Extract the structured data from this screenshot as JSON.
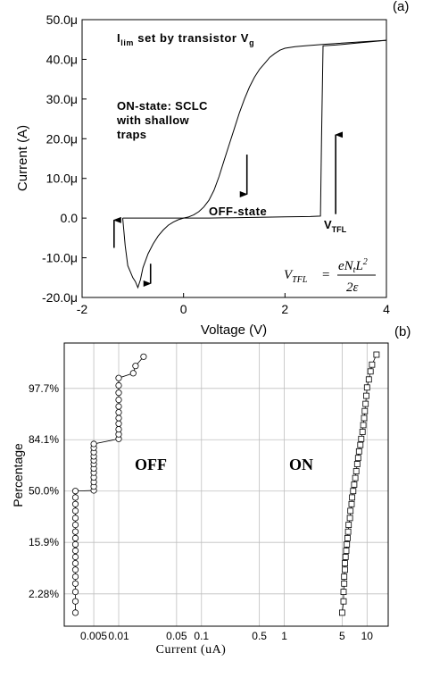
{
  "chart_data": [
    {
      "type": "line",
      "panel_label": "(a)",
      "xlabel": "Voltage (V)",
      "ylabel": "Current (A)",
      "xlim": [
        -2,
        4
      ],
      "ylim": [
        -20,
        50
      ],
      "x_ticks": [
        -2,
        0,
        2,
        4
      ],
      "y_ticks": [
        -20,
        -10,
        0,
        10,
        20,
        30,
        40,
        50
      ],
      "y_tick_labels": [
        "-20.0μ",
        "-10.0μ",
        "0.0",
        "10.0μ",
        "20.0μ",
        "30.0μ",
        "40.0μ",
        "50.0μ"
      ],
      "x_tick_labels": [
        "-2",
        "0",
        "2",
        "4"
      ],
      "grid": false,
      "annotations": {
        "ilim_main": "I",
        "ilim_sub": "lim",
        "ilim_rest": " set by transistor V",
        "ilim_vsub": "g",
        "on_line1": "ON-state: SCLC",
        "on_line2": "with shallow",
        "on_line3": "traps",
        "off": "OFF-state",
        "vtfl_main": "V",
        "vtfl_sub": "TFL",
        "formula_lhs": "V",
        "formula_lhs_sub": "TFL",
        "formula_num": "eN",
        "formula_num_sub": "t",
        "formula_num_L": "L",
        "formula_num_sup": "2",
        "formula_den": "2ε"
      },
      "series": [
        {
          "x": [
            -1.2,
            -1.15,
            -1.1,
            -1.05,
            -1.0,
            -0.95,
            -0.9,
            -0.85,
            -0.8,
            -0.7,
            -0.6,
            -0.5,
            -0.4,
            -0.3,
            -0.2,
            -0.1,
            0.0,
            0.1,
            0.2,
            0.3,
            0.4,
            0.5,
            0.6,
            0.7,
            0.8,
            0.9,
            1.0,
            1.1,
            1.2,
            1.3,
            1.4,
            1.5,
            1.6,
            1.7,
            1.8,
            1.9,
            2.0,
            2.2,
            2.4,
            2.6,
            2.8,
            3.0,
            3.5,
            4.0
          ],
          "y": [
            0.0,
            -7.0,
            -12.0,
            -13.5,
            -15.0,
            -16.0,
            -17.5,
            -15.5,
            -12.5,
            -9.0,
            -6.5,
            -4.5,
            -3.0,
            -1.8,
            -1.0,
            -0.4,
            0.0,
            0.3,
            0.8,
            1.6,
            2.8,
            4.5,
            7.0,
            10.5,
            14.5,
            18.5,
            22.5,
            26.5,
            30.0,
            33.0,
            35.5,
            37.5,
            39.0,
            40.5,
            41.5,
            42.3,
            42.8,
            43.2,
            43.4,
            43.6,
            43.8,
            44.0,
            44.4,
            44.8
          ]
        },
        {
          "x": [
            -1.2,
            -0.5,
            0.0,
            0.5,
            1.0,
            1.5,
            2.0,
            2.5,
            2.7,
            2.72,
            2.75,
            3.0,
            3.5,
            4.0
          ],
          "y": [
            0.0,
            0.0,
            0.0,
            0.0,
            0.1,
            0.2,
            0.3,
            0.4,
            0.5,
            20.0,
            43.4,
            43.6,
            44.2,
            44.8
          ]
        }
      ],
      "arrows": [
        {
          "x": -1.37,
          "from_y": -7.5,
          "to_y": -0.5
        },
        {
          "x": -0.65,
          "from_y": -11.5,
          "to_y": -16.5
        },
        {
          "x": 1.25,
          "from_y": 16.0,
          "to_y": 6.0
        },
        {
          "x": 3.0,
          "from_y": 1.0,
          "to_y": 21.0
        }
      ]
    },
    {
      "type": "scatter",
      "panel_label": "(b)",
      "xlabel": "Current (uA)",
      "ylabel": "Percentage",
      "x_scale": "log",
      "y_scale": "probability",
      "xlim": [
        0.0022,
        18
      ],
      "ylim": [
        0.43,
        99.8
      ],
      "x_ticks": [
        0.005,
        0.01,
        0.05,
        0.1,
        0.5,
        1,
        5,
        10
      ],
      "x_tick_labels": [
        "0.005",
        "0.01",
        "0.05",
        "0.1",
        "0.5",
        "1",
        "5",
        "10"
      ],
      "y_ticks": [
        2.28,
        15.9,
        50.0,
        84.1,
        97.7
      ],
      "y_tick_labels": [
        "2.28%",
        "15.9%",
        "50.0%",
        "84.1%",
        "97.7%"
      ],
      "grid": true,
      "series": [
        {
          "name": "OFF",
          "marker": "circle",
          "values": [
            [
              0.003,
              0.9
            ],
            [
              0.003,
              1.6
            ],
            [
              0.003,
              2.5
            ],
            [
              0.003,
              3.6
            ],
            [
              0.003,
              4.8
            ],
            [
              0.003,
              6.3
            ],
            [
              0.003,
              8.0
            ],
            [
              0.003,
              10.0
            ],
            [
              0.003,
              12.3
            ],
            [
              0.003,
              15.0
            ],
            [
              0.003,
              18.0
            ],
            [
              0.003,
              21.5
            ],
            [
              0.003,
              25.5
            ],
            [
              0.003,
              30.0
            ],
            [
              0.003,
              35.0
            ],
            [
              0.003,
              40.0
            ],
            [
              0.003,
              45.0
            ],
            [
              0.003,
              50.0
            ],
            [
              0.005,
              50.5
            ],
            [
              0.005,
              53.5
            ],
            [
              0.005,
              57.0
            ],
            [
              0.005,
              60.5
            ],
            [
              0.005,
              64.0
            ],
            [
              0.005,
              67.0
            ],
            [
              0.005,
              70.0
            ],
            [
              0.005,
              72.5
            ],
            [
              0.005,
              75.0
            ],
            [
              0.005,
              77.5
            ],
            [
              0.005,
              80.0
            ],
            [
              0.005,
              82.0
            ],
            [
              0.01,
              84.5
            ],
            [
              0.01,
              86.5
            ],
            [
              0.01,
              88.5
            ],
            [
              0.01,
              90.5
            ],
            [
              0.01,
              92.2
            ],
            [
              0.01,
              93.7
            ],
            [
              0.01,
              95.0
            ],
            [
              0.01,
              96.2
            ],
            [
              0.01,
              97.2
            ],
            [
              0.01,
              98.0
            ],
            [
              0.01,
              98.6
            ],
            [
              0.015,
              98.9
            ],
            [
              0.016,
              99.25
            ],
            [
              0.02,
              99.55
            ]
          ]
        },
        {
          "name": "ON",
          "marker": "square",
          "values": [
            [
              5.0,
              0.9
            ],
            [
              5.2,
              1.6
            ],
            [
              5.2,
              2.5
            ],
            [
              5.3,
              3.6
            ],
            [
              5.3,
              4.8
            ],
            [
              5.4,
              6.3
            ],
            [
              5.4,
              8.0
            ],
            [
              5.5,
              10.0
            ],
            [
              5.6,
              12.3
            ],
            [
              5.7,
              15.0
            ],
            [
              5.8,
              18.0
            ],
            [
              5.9,
              21.5
            ],
            [
              6.0,
              25.5
            ],
            [
              6.2,
              30.0
            ],
            [
              6.3,
              35.0
            ],
            [
              6.5,
              40.0
            ],
            [
              6.6,
              45.0
            ],
            [
              6.8,
              50.0
            ],
            [
              7.0,
              55.0
            ],
            [
              7.2,
              60.0
            ],
            [
              7.4,
              65.0
            ],
            [
              7.6,
              70.0
            ],
            [
              7.8,
              74.0
            ],
            [
              8.0,
              78.0
            ],
            [
              8.3,
              81.5
            ],
            [
              8.5,
              84.5
            ],
            [
              8.8,
              87.5
            ],
            [
              9.0,
              90.0
            ],
            [
              9.2,
              92.2
            ],
            [
              9.4,
              94.0
            ],
            [
              9.6,
              95.5
            ],
            [
              9.8,
              96.8
            ],
            [
              10.0,
              97.8
            ],
            [
              10.5,
              98.5
            ],
            [
              11.0,
              99.0
            ],
            [
              11.5,
              99.3
            ],
            [
              13.0,
              99.6
            ]
          ]
        }
      ]
    }
  ]
}
